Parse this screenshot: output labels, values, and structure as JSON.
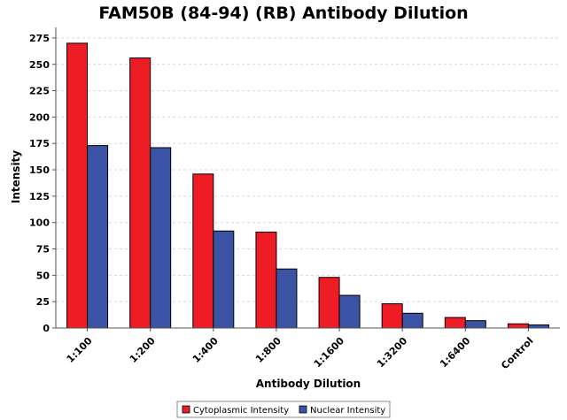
{
  "chart_data": {
    "type": "bar",
    "title": "FAM50B (84-94) (RB) Antibody Dilution",
    "xlabel": "Antibody Dilution",
    "ylabel": "Intensity",
    "categories": [
      "1:100",
      "1:200",
      "1:400",
      "1:800",
      "1:1600",
      "1:3200",
      "1:6400",
      "Control"
    ],
    "series": [
      {
        "name": "Cytoplasmic Intensity",
        "color": "#ee1c25",
        "values": [
          270,
          256,
          146,
          91,
          48,
          23,
          10,
          4
        ]
      },
      {
        "name": "Nuclear Intensity",
        "color": "#3a53a4",
        "values": [
          173,
          171,
          92,
          56,
          31,
          14,
          7,
          3
        ]
      }
    ],
    "ylim": [
      0,
      285
    ],
    "yticks": [
      0,
      25,
      50,
      75,
      100,
      125,
      150,
      175,
      200,
      225,
      250,
      275
    ],
    "grid": true,
    "legend_position": "bottom-center"
  }
}
